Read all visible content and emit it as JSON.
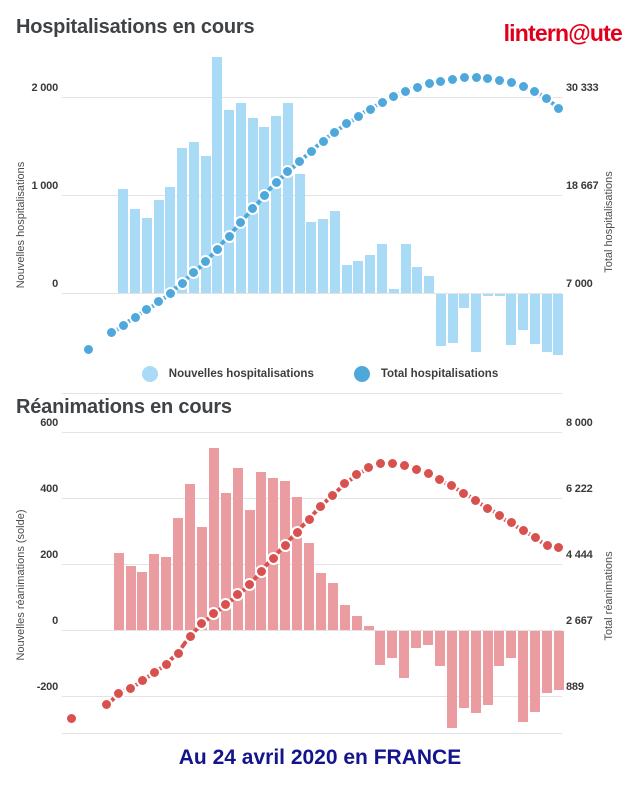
{
  "header": {
    "logo": "lintern@ute"
  },
  "footer": {
    "caption": "Au 24 avril 2020 en FRANCE"
  },
  "colors": {
    "title_text": "#3F4346",
    "logo_red": "#E0001B",
    "caption_blue": "#14148C",
    "grid": "#E3E3E3",
    "tick_text": "#3A3A3A",
    "new_hosp_blue": "#A9DBF6",
    "total_hosp_blue": "#4FA8DC",
    "new_rea_red": "#EB9CA1",
    "total_rea_red": "#D8514E"
  },
  "chart_data": [
    {
      "type": "bar+line",
      "title": "Hospitalisations en cours",
      "legend_position": "bottom-center",
      "grid": true,
      "bar_series": {
        "name": "Nouvelles hospitalisations",
        "axis": "left",
        "color": "#A9DBF6",
        "values": [
          1060,
          860,
          770,
          950,
          1080,
          1475,
          1540,
          1400,
          2440,
          1870,
          1940,
          1790,
          1690,
          1810,
          1940,
          1210,
          720,
          760,
          840,
          290,
          330,
          390,
          495,
          45,
          505,
          270,
          170,
          -535,
          -495,
          -145,
          -590,
          -25,
          -20,
          -520,
          -370,
          -510,
          -590,
          -620
        ]
      },
      "line_series": {
        "name": "Total hospitalisations",
        "axis": "right",
        "color": "#4FA8DC",
        "style": "dashed-dots",
        "values": [
          250,
          null,
          2280,
          3190,
          4100,
          5000,
          5950,
          7000,
          8150,
          9400,
          10750,
          12200,
          13750,
          15400,
          17000,
          18650,
          20100,
          21450,
          22700,
          23900,
          25050,
          26150,
          27150,
          28050,
          28900,
          29650,
          30400,
          31000,
          31500,
          31900,
          32200,
          32450,
          32600,
          32650,
          32550,
          32350,
          32050,
          31600,
          31000,
          30100,
          29000
        ]
      },
      "left_axis": {
        "label": "Nouvelles hospitalisations",
        "range": [
          -650,
          2440
        ],
        "ticks": [
          {
            "v": 2000,
            "t": "2 000"
          },
          {
            "v": 1000,
            "t": "1 000"
          },
          {
            "v": 0,
            "t": "0"
          }
        ]
      },
      "right_axis": {
        "label": "Total hospitalisations",
        "range": [
          0,
          32650
        ],
        "ticks": [
          {
            "v": 30333,
            "t": "30 333"
          },
          {
            "v": 18667,
            "t": "18 667"
          },
          {
            "v": 7000,
            "t": "7 000"
          }
        ]
      },
      "legend": [
        {
          "label": "Nouvelles hospitalisations",
          "color": "#A9DBF6"
        },
        {
          "label": "Total hospitalisations",
          "color": "#4FA8DC"
        }
      ]
    },
    {
      "type": "bar+line",
      "title": "Réanimations en cours",
      "legend_position": "none",
      "grid": true,
      "bar_series": {
        "name": "Nouvelles réanimations (solde)",
        "axis": "left",
        "color": "#EB9CA1",
        "values": [
          233,
          194,
          175,
          230,
          222,
          339,
          442,
          312,
          551,
          415,
          490,
          364,
          479,
          460,
          452,
          403,
          264,
          173,
          142,
          76,
          41,
          12,
          -104,
          -81,
          -142,
          -51,
          -41,
          -107,
          -295,
          -234,
          -249,
          -224,
          -107,
          -81,
          -275,
          -244,
          -188,
          -178
        ]
      },
      "line_series": {
        "name": "Total réanimations",
        "axis": "right",
        "color": "#D8514E",
        "style": "dashed-dots",
        "values": [
          270,
          null,
          null,
          650,
          960,
          1100,
          1295,
          1520,
          1745,
          2040,
          2505,
          2830,
          3100,
          3350,
          3620,
          3900,
          4250,
          4600,
          4950,
          5300,
          5650,
          6000,
          6300,
          6600,
          6850,
          7050,
          7150,
          7150,
          7100,
          7000,
          6870,
          6720,
          6550,
          6350,
          6150,
          5950,
          5750,
          5550,
          5350,
          5150,
          4950,
          4900
        ]
      },
      "left_axis": {
        "label": "Nouvelles réanimations (solde)",
        "range": [
          -310,
          600
        ],
        "ticks": [
          {
            "v": 600,
            "t": "600"
          },
          {
            "v": 400,
            "t": "400"
          },
          {
            "v": 200,
            "t": "200"
          },
          {
            "v": 0,
            "t": "0"
          },
          {
            "v": -200,
            "t": "-200"
          }
        ]
      },
      "right_axis": {
        "label": "Total réanimations",
        "range": [
          0,
          7150
        ],
        "ticks": [
          {
            "v": 8000,
            "t": "8 000"
          },
          {
            "v": 6222,
            "t": "6 222"
          },
          {
            "v": 4444,
            "t": "4 444"
          },
          {
            "v": 2667,
            "t": "2 667"
          },
          {
            "v": 889,
            "t": "889"
          }
        ]
      }
    }
  ]
}
